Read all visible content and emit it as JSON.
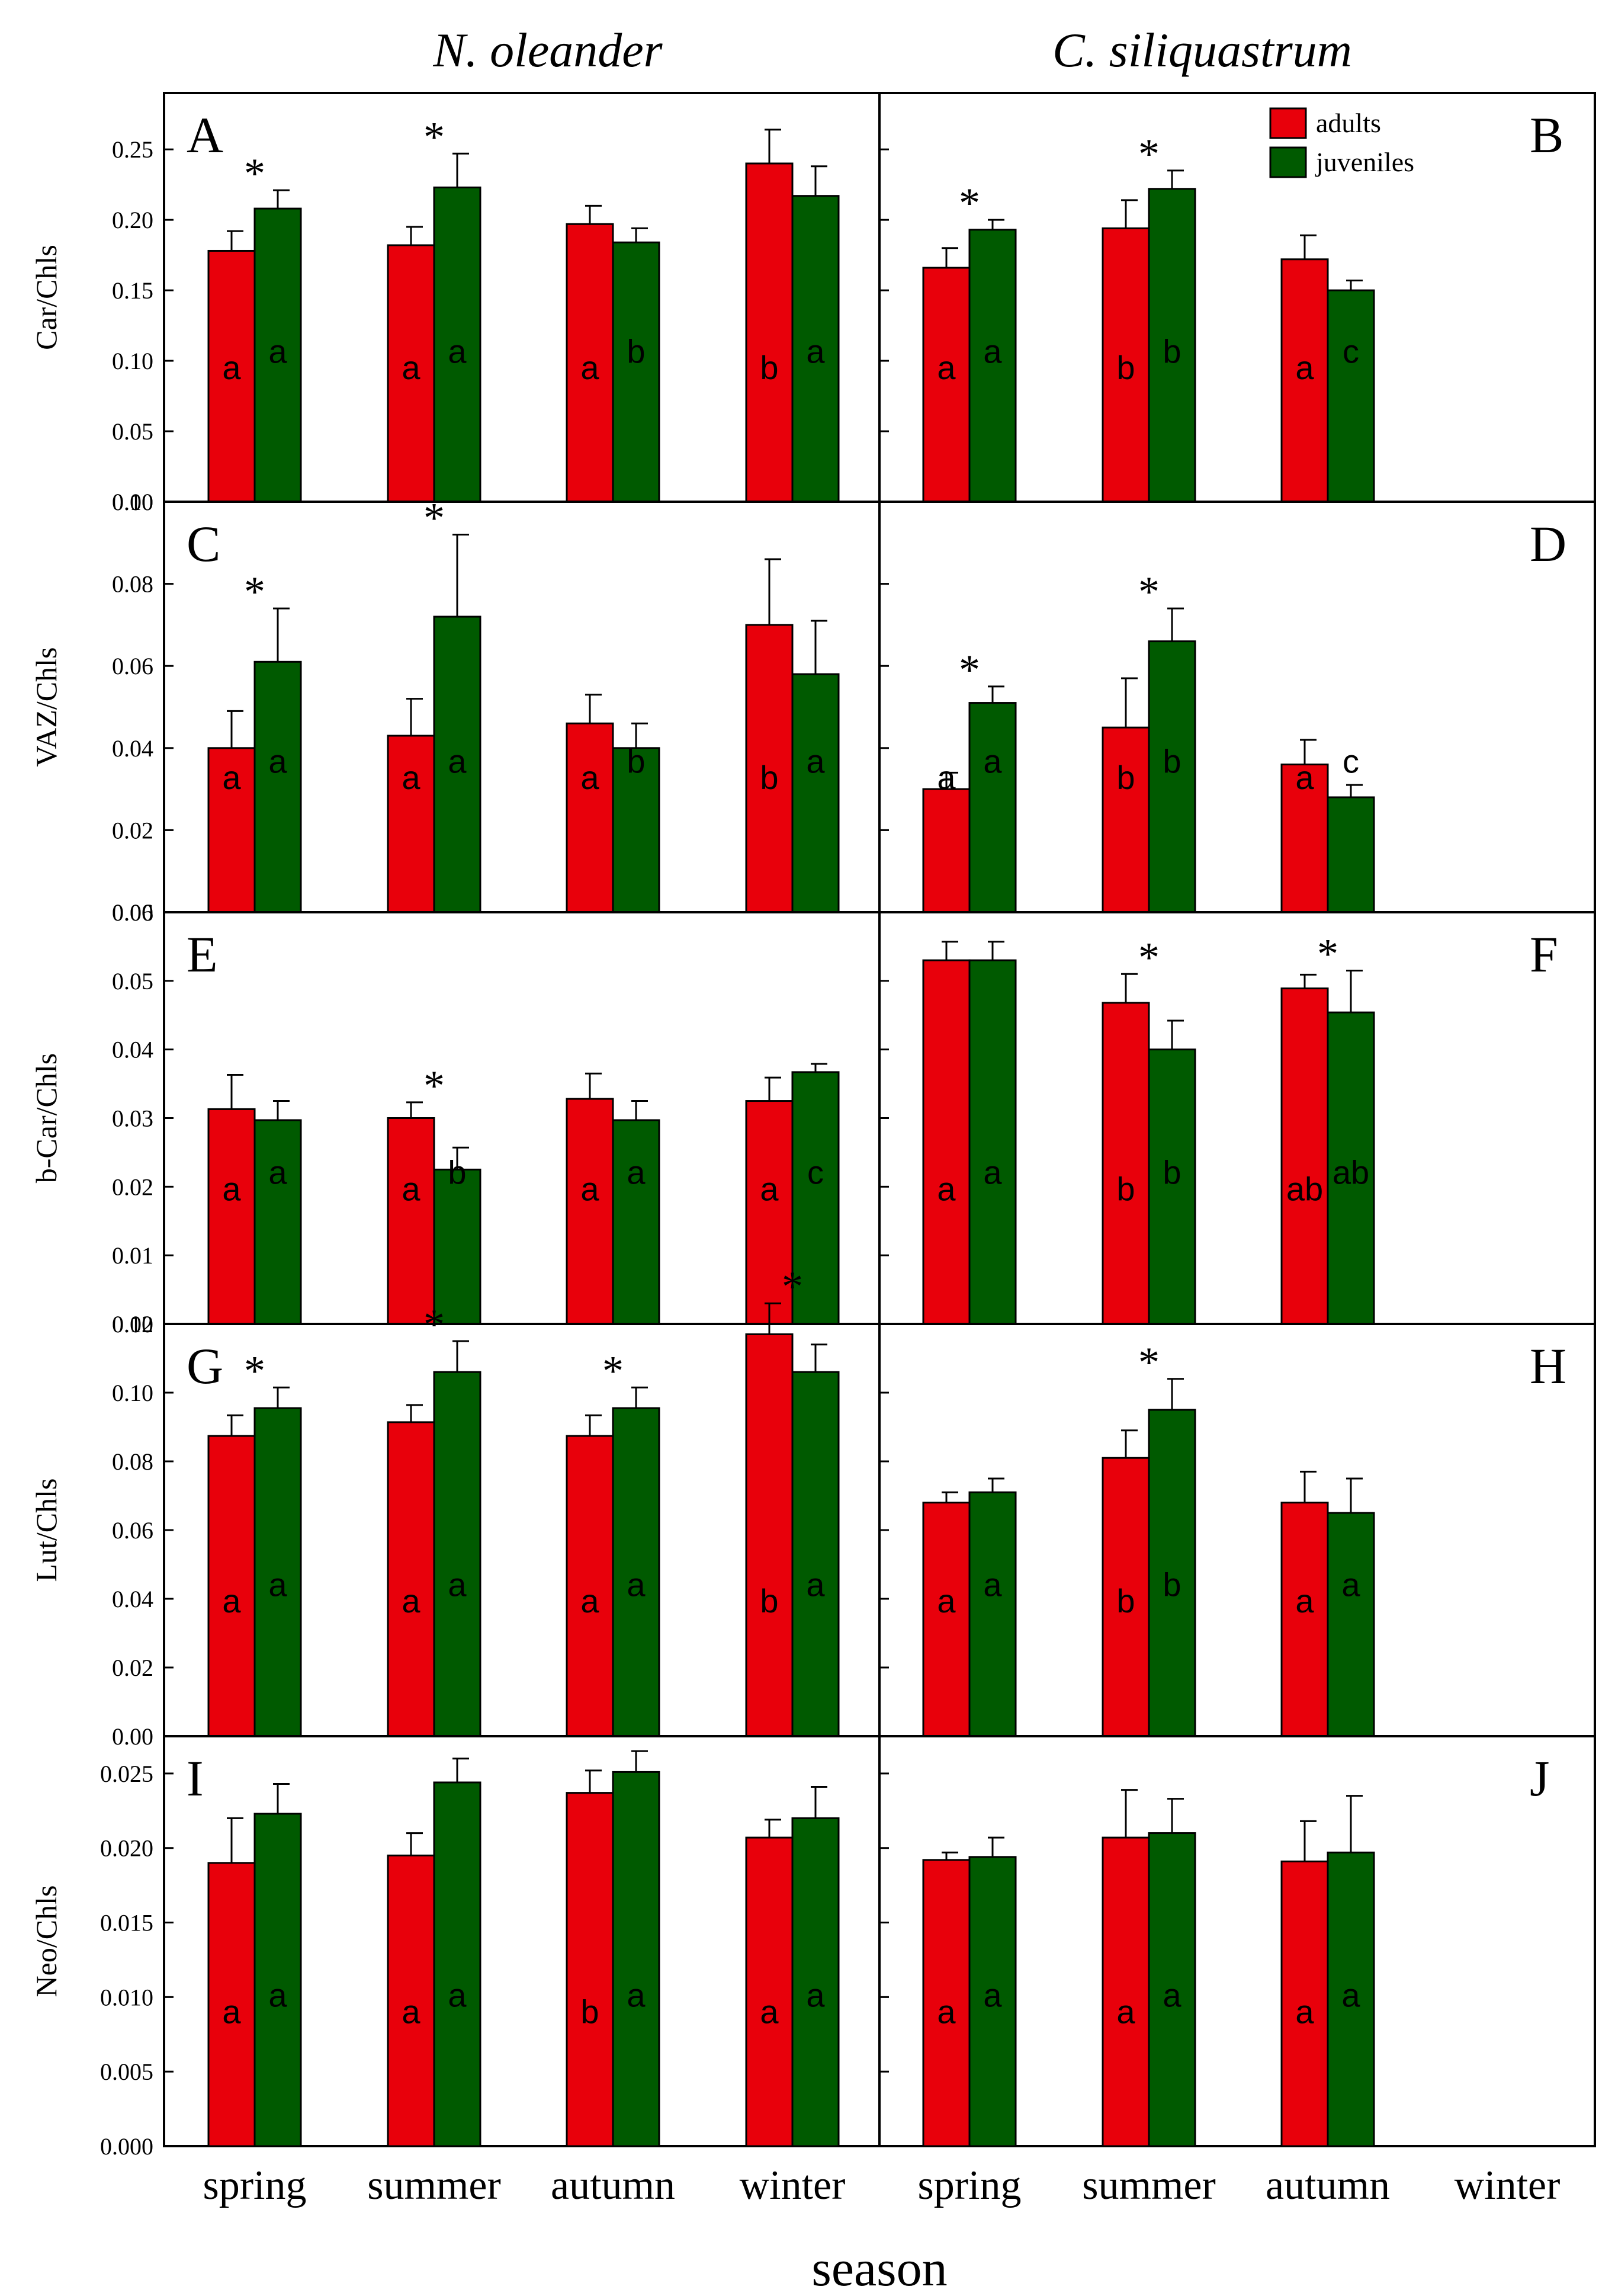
{
  "figure": {
    "species": [
      "N. oleander",
      "C. siliquastrum"
    ],
    "x_axis_title": "season",
    "seasons": [
      "spring",
      "summer",
      "autumn",
      "winter"
    ],
    "legend": [
      {
        "label": "adults",
        "color": "#e8000b"
      },
      {
        "label": "juveniles",
        "color": "#005a00"
      }
    ],
    "colors": {
      "adults": "#e8000b",
      "juveniles": "#005a00",
      "frame": "#000000"
    }
  },
  "chart_data": [
    {
      "type": "bar",
      "panel": "A",
      "species": "N. oleander",
      "ylabel": "Car/Chls",
      "ylim": [
        0,
        0.29
      ],
      "yticks": [
        "0.00",
        "0.05",
        "0.10",
        "0.15",
        "0.20",
        "0.25"
      ],
      "ytick_values": [
        0,
        0.05,
        0.1,
        0.15,
        0.2,
        0.25
      ],
      "categories": [
        "spring",
        "summer",
        "autumn",
        "winter"
      ],
      "series": [
        {
          "name": "adults",
          "values": [
            0.178,
            0.182,
            0.197,
            0.24
          ],
          "errors": [
            0.014,
            0.013,
            0.013,
            0.024
          ],
          "letters": [
            "a",
            "a",
            "a",
            "b"
          ]
        },
        {
          "name": "juveniles",
          "values": [
            0.208,
            0.223,
            0.184,
            0.217
          ],
          "errors": [
            0.013,
            0.024,
            0.01,
            0.021
          ],
          "letters": [
            "a",
            "a",
            "b",
            "a"
          ]
        }
      ],
      "significance": [
        true,
        true,
        false,
        false
      ]
    },
    {
      "type": "bar",
      "panel": "B",
      "species": "C. siliquastrum",
      "ylabel": "Car/Chls",
      "ylim": [
        0,
        0.29
      ],
      "categories": [
        "spring",
        "summer",
        "autumn",
        "winter"
      ],
      "series": [
        {
          "name": "adults",
          "values": [
            0.166,
            0.194,
            0.172,
            null
          ],
          "errors": [
            0.014,
            0.02,
            0.017,
            null
          ],
          "letters": [
            "a",
            "b",
            "a",
            ""
          ]
        },
        {
          "name": "juveniles",
          "values": [
            0.193,
            0.222,
            0.15,
            null
          ],
          "errors": [
            0.007,
            0.013,
            0.007,
            null
          ],
          "letters": [
            "a",
            "b",
            "c",
            ""
          ]
        }
      ],
      "significance": [
        true,
        true,
        false,
        false
      ]
    },
    {
      "type": "bar",
      "panel": "C",
      "species": "N. oleander",
      "ylabel": "VAZ/Chls",
      "ylim": [
        0,
        0.1
      ],
      "yticks": [
        "0.00",
        "0.02",
        "0.04",
        "0.06",
        "0.08",
        "0.10"
      ],
      "ytick_values": [
        0,
        0.02,
        0.04,
        0.06,
        0.08,
        0.1
      ],
      "categories": [
        "spring",
        "summer",
        "autumn",
        "winter"
      ],
      "series": [
        {
          "name": "adults",
          "values": [
            0.04,
            0.043,
            0.046,
            0.07
          ],
          "errors": [
            0.009,
            0.009,
            0.007,
            0.016
          ],
          "letters": [
            "a",
            "a",
            "a",
            "b"
          ]
        },
        {
          "name": "juveniles",
          "values": [
            0.061,
            0.072,
            0.04,
            0.058
          ],
          "errors": [
            0.013,
            0.02,
            0.006,
            0.013
          ],
          "letters": [
            "a",
            "a",
            "b",
            "a"
          ]
        }
      ],
      "significance": [
        true,
        true,
        false,
        false
      ]
    },
    {
      "type": "bar",
      "panel": "D",
      "species": "C. siliquastrum",
      "ylabel": "VAZ/Chls",
      "ylim": [
        0,
        0.1
      ],
      "categories": [
        "spring",
        "summer",
        "autumn",
        "winter"
      ],
      "series": [
        {
          "name": "adults",
          "values": [
            0.03,
            0.045,
            0.036,
            null
          ],
          "errors": [
            0.004,
            0.012,
            0.006,
            null
          ],
          "letters": [
            "a",
            "b",
            "a",
            ""
          ]
        },
        {
          "name": "juveniles",
          "values": [
            0.051,
            0.066,
            0.028,
            null
          ],
          "errors": [
            0.004,
            0.008,
            0.003,
            null
          ],
          "letters": [
            "a",
            "b",
            "c",
            ""
          ]
        }
      ],
      "significance": [
        true,
        true,
        false,
        false
      ]
    },
    {
      "type": "bar",
      "panel": "E",
      "species": "N. oleander",
      "ylabel": "b-Car/Chls",
      "ylim": [
        0,
        0.06
      ],
      "yticks": [
        "0.00",
        "0.01",
        "0.02",
        "0.03",
        "0.04",
        "0.05",
        "0.06"
      ],
      "ytick_values": [
        0,
        0.01,
        0.02,
        0.03,
        0.04,
        0.05,
        0.06
      ],
      "categories": [
        "spring",
        "summer",
        "autumn",
        "winter"
      ],
      "series": [
        {
          "name": "adults",
          "values": [
            0.0313,
            0.03,
            0.0328,
            0.0325
          ],
          "errors": [
            0.005,
            0.0023,
            0.0037,
            0.0034
          ],
          "letters": [
            "a",
            "a",
            "a",
            "a"
          ]
        },
        {
          "name": "juveniles",
          "values": [
            0.0297,
            0.0225,
            0.0297,
            0.0367
          ],
          "errors": [
            0.0028,
            0.0032,
            0.0028,
            0.0012
          ],
          "letters": [
            "a",
            "b",
            "a",
            "c"
          ]
        }
      ],
      "significance": [
        false,
        true,
        false,
        false
      ]
    },
    {
      "type": "bar",
      "panel": "F",
      "species": "C. siliquastrum",
      "ylabel": "b-Car/Chls",
      "ylim": [
        0,
        0.06
      ],
      "categories": [
        "spring",
        "summer",
        "autumn",
        "winter"
      ],
      "series": [
        {
          "name": "adults",
          "values": [
            0.053,
            0.0468,
            0.0489,
            null
          ],
          "errors": [
            0.0027,
            0.0042,
            0.002,
            null
          ],
          "letters": [
            "a",
            "b",
            "ab",
            ""
          ]
        },
        {
          "name": "juveniles",
          "values": [
            0.053,
            0.04,
            0.0454,
            null
          ],
          "errors": [
            0.0027,
            0.0042,
            0.0061,
            null
          ],
          "letters": [
            "a",
            "b",
            "ab",
            ""
          ]
        }
      ],
      "significance": [
        false,
        true,
        true,
        false
      ]
    },
    {
      "type": "bar",
      "panel": "G",
      "species": "N. oleander",
      "ylabel": "Lut/Chls",
      "ylim": [
        0,
        0.12
      ],
      "yticks": [
        "0.00",
        "0.02",
        "0.04",
        "0.06",
        "0.08",
        "0.10",
        "0.12"
      ],
      "ytick_values": [
        0,
        0.02,
        0.04,
        0.06,
        0.08,
        0.1,
        0.12
      ],
      "categories": [
        "spring",
        "summer",
        "autumn",
        "winter"
      ],
      "series": [
        {
          "name": "adults",
          "values": [
            0.0874,
            0.0914,
            0.0874,
            0.117
          ],
          "errors": [
            0.006,
            0.005,
            0.006,
            0.009
          ],
          "letters": [
            "a",
            "a",
            "a",
            "b"
          ]
        },
        {
          "name": "juveniles",
          "values": [
            0.0955,
            0.106,
            0.0955,
            0.106
          ],
          "errors": [
            0.006,
            0.009,
            0.006,
            0.008
          ],
          "letters": [
            "a",
            "a",
            "a",
            "a"
          ]
        }
      ],
      "significance": [
        true,
        true,
        true,
        true
      ]
    },
    {
      "type": "bar",
      "panel": "H",
      "species": "C. siliquastrum",
      "ylabel": "Lut/Chls",
      "ylim": [
        0,
        0.12
      ],
      "categories": [
        "spring",
        "summer",
        "autumn",
        "winter"
      ],
      "series": [
        {
          "name": "adults",
          "values": [
            0.068,
            0.081,
            0.068,
            null
          ],
          "errors": [
            0.003,
            0.008,
            0.009,
            null
          ],
          "letters": [
            "a",
            "b",
            "a",
            ""
          ]
        },
        {
          "name": "juveniles",
          "values": [
            0.071,
            0.095,
            0.065,
            null
          ],
          "errors": [
            0.004,
            0.009,
            0.01,
            null
          ],
          "letters": [
            "a",
            "b",
            "a",
            ""
          ]
        }
      ],
      "significance": [
        false,
        true,
        false,
        false
      ]
    },
    {
      "type": "bar",
      "panel": "I",
      "species": "N. oleander",
      "ylabel": "Neo/Chls",
      "ylim": [
        0,
        0.0275
      ],
      "yticks": [
        "0.000",
        "0.005",
        "0.010",
        "0.015",
        "0.020",
        "0.025"
      ],
      "ytick_values": [
        0,
        0.005,
        0.01,
        0.015,
        0.02,
        0.025
      ],
      "categories": [
        "spring",
        "summer",
        "autumn",
        "winter"
      ],
      "series": [
        {
          "name": "adults",
          "values": [
            0.019,
            0.0195,
            0.0237,
            0.0207
          ],
          "errors": [
            0.003,
            0.0015,
            0.0015,
            0.0012
          ],
          "letters": [
            "a",
            "a",
            "b",
            "a"
          ]
        },
        {
          "name": "juveniles",
          "values": [
            0.0223,
            0.0244,
            0.0251,
            0.022
          ],
          "errors": [
            0.002,
            0.0016,
            0.0014,
            0.0021
          ],
          "letters": [
            "a",
            "a",
            "a",
            "a"
          ]
        }
      ],
      "significance": [
        false,
        false,
        false,
        false
      ]
    },
    {
      "type": "bar",
      "panel": "J",
      "species": "C. siliquastrum",
      "ylabel": "Neo/Chls",
      "ylim": [
        0,
        0.0275
      ],
      "categories": [
        "spring",
        "summer",
        "autumn",
        "winter"
      ],
      "series": [
        {
          "name": "adults",
          "values": [
            0.0192,
            0.0207,
            0.0191,
            null
          ],
          "errors": [
            0.0005,
            0.0032,
            0.0027,
            null
          ],
          "letters": [
            "a",
            "a",
            "a",
            ""
          ]
        },
        {
          "name": "juveniles",
          "values": [
            0.0194,
            0.021,
            0.0197,
            null
          ],
          "errors": [
            0.0013,
            0.0023,
            0.0038,
            null
          ],
          "letters": [
            "a",
            "a",
            "a",
            ""
          ]
        }
      ],
      "significance": [
        false,
        false,
        false,
        false
      ]
    }
  ]
}
